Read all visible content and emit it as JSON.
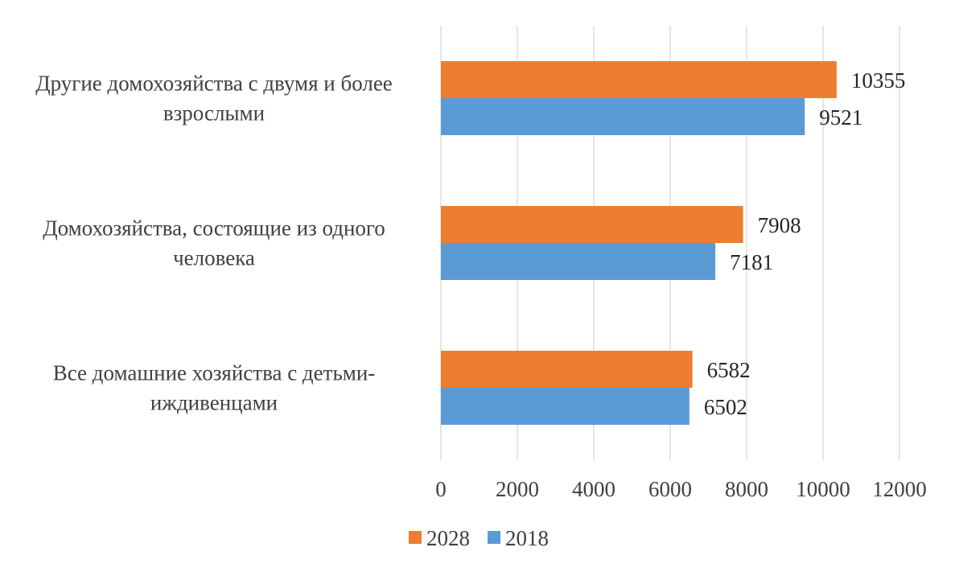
{
  "chart_data": {
    "type": "bar",
    "orientation": "horizontal",
    "categories": [
      [
        "Другие домохозяйства с двумя и более",
        "взрослыми"
      ],
      [
        "Домохозяйства, состоящие из одного",
        "человека"
      ],
      [
        "Все домашние хозяйства с детьми-",
        "иждивенцами"
      ]
    ],
    "series": [
      {
        "name": "2028",
        "color": "#ED7D31",
        "values": [
          10355,
          7908,
          6582
        ]
      },
      {
        "name": "2018",
        "color": "#5B9BD5",
        "values": [
          9521,
          7181,
          6502
        ]
      }
    ],
    "xlim": [
      0,
      12000
    ],
    "ticks": [
      0,
      2000,
      4000,
      6000,
      8000,
      10000,
      12000
    ],
    "tick_labels": [
      "0",
      "2000",
      "4000",
      "6000",
      "8000",
      "10000",
      "12000"
    ],
    "grid": "vertical",
    "legend_placement": "bottom-center",
    "data_labels": true
  }
}
